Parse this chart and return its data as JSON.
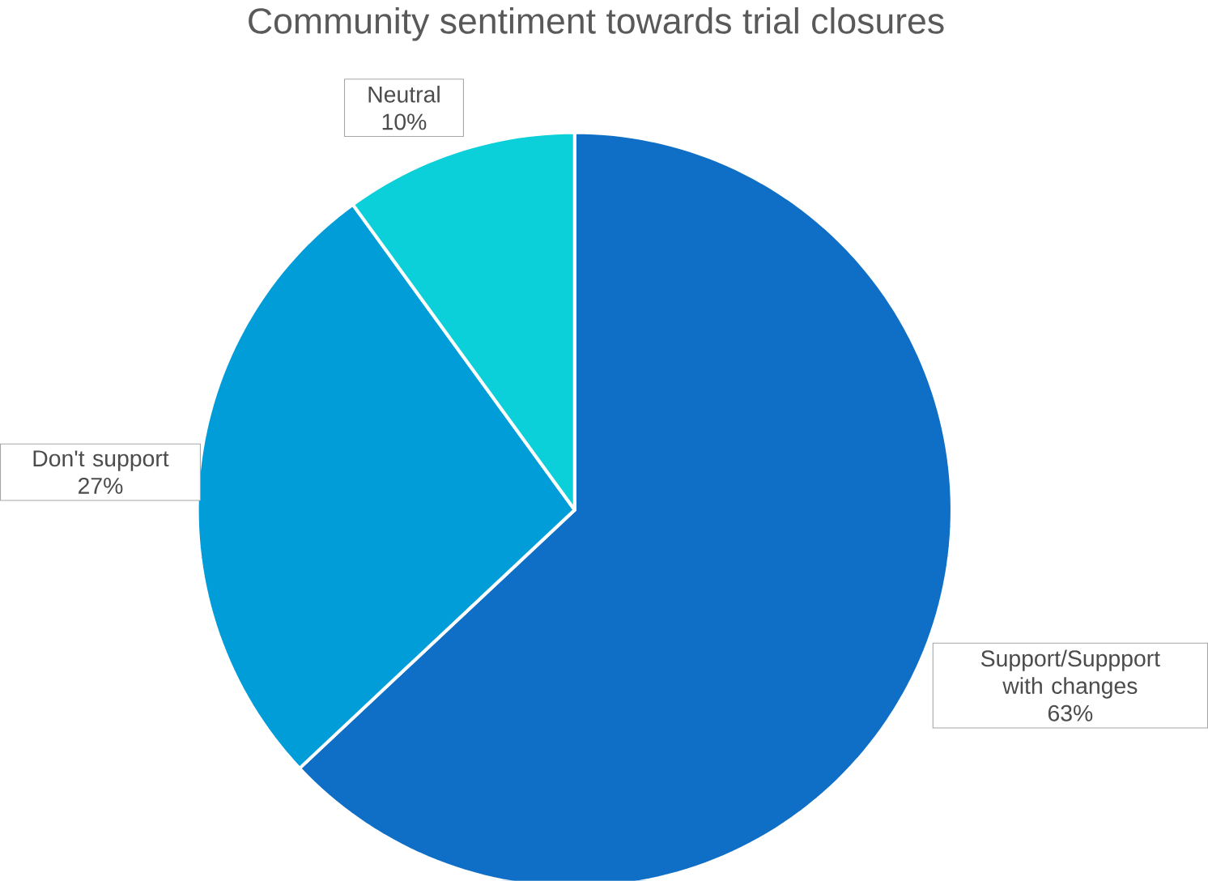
{
  "chart_data": {
    "type": "pie",
    "title": "Community sentiment towards trial closures",
    "categories": [
      "Support/Suppport with changes",
      "Don't support",
      "Neutral"
    ],
    "values": [
      63,
      27,
      10
    ],
    "value_labels": [
      "63%",
      "27%",
      "10%"
    ],
    "colors": [
      "#0f6fc6",
      "#009dd9",
      "#0bd0d9"
    ]
  }
}
